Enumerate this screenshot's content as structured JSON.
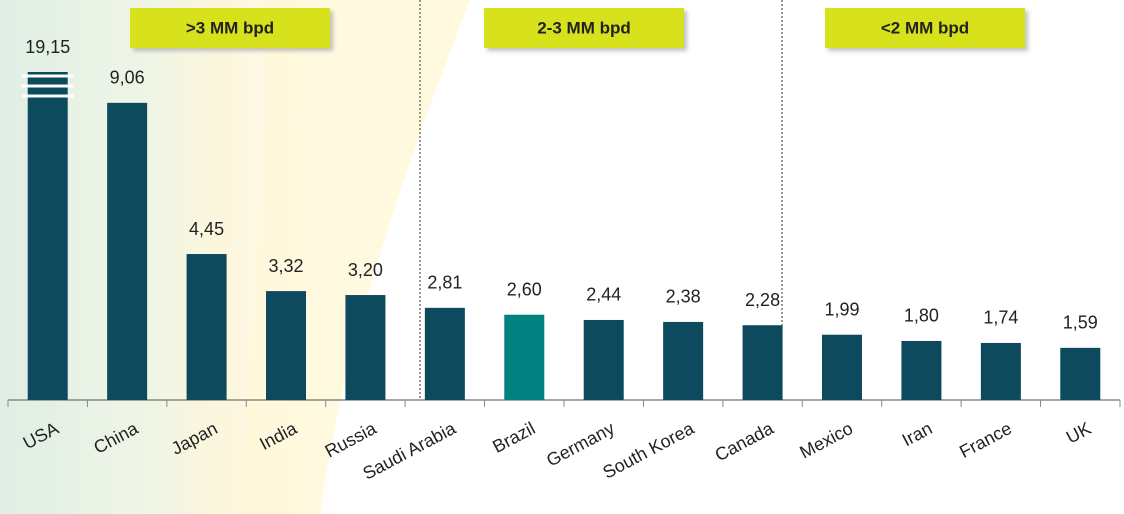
{
  "chart_data": {
    "type": "bar",
    "categories": [
      "USA",
      "China",
      "Japan",
      "India",
      "Russia",
      "Saudi Arabia",
      "Brazil",
      "Germany",
      "South Korea",
      "Canada",
      "Mexico",
      "Iran",
      "France",
      "UK"
    ],
    "values": [
      19.15,
      9.06,
      4.45,
      3.32,
      3.2,
      2.81,
      2.6,
      2.44,
      2.38,
      2.28,
      1.99,
      1.8,
      1.74,
      1.59
    ],
    "value_labels": [
      "19,15",
      "9,06",
      "4,45",
      "3,32",
      "3,20",
      "2,81",
      "2,60",
      "2,44",
      "2,38",
      "2,28",
      "1,99",
      "1,80",
      "1,74",
      "1,59"
    ],
    "colors": [
      "#0e4a5d",
      "#0e4a5d",
      "#0e4a5d",
      "#0e4a5d",
      "#0e4a5d",
      "#0e4a5d",
      "#00807f",
      "#0e4a5d",
      "#0e4a5d",
      "#0e4a5d",
      "#0e4a5d",
      "#0e4a5d",
      "#0e4a5d",
      "#0e4a5d"
    ],
    "ylim": [
      0,
      10
    ],
    "annotations": [
      ">3 MM bpd",
      "2-3 MM bpd",
      "<2 MM bpd"
    ]
  }
}
